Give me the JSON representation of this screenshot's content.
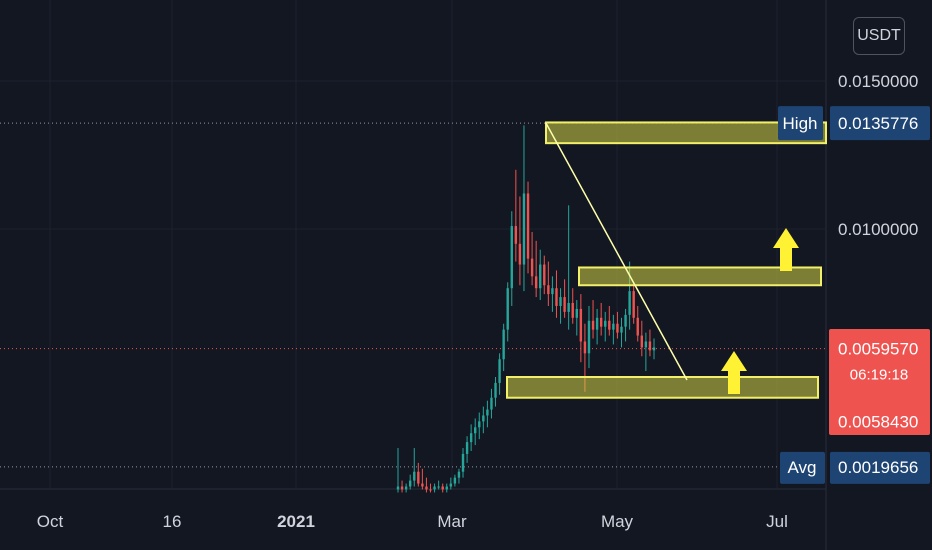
{
  "currency_button": "USDT",
  "chart_data": {
    "type": "candlestick",
    "y_axis": {
      "scale": "linear",
      "range": [
        0.001,
        0.0175
      ],
      "ticks": [
        "0.0150000",
        "0.0100000"
      ],
      "tick_values": [
        0.015,
        0.01
      ],
      "grid": true
    },
    "x_axis": {
      "tick_labels": [
        "Oct",
        "16",
        "2021",
        "Mar",
        "May",
        "Jul"
      ],
      "bold_labels": [
        "2021"
      ],
      "grid": true
    },
    "price_labels": {
      "high": {
        "label": "High",
        "value": "0.0135776",
        "numeric": 0.0135776
      },
      "current": {
        "value": "0.0059570",
        "numeric": 0.005957,
        "countdown": "06:19:18"
      },
      "low_level": {
        "value": "0.0058430",
        "numeric": 0.005843
      },
      "avg": {
        "label": "Avg",
        "value": "0.0019656",
        "numeric": 0.0019656
      }
    },
    "zones": [
      {
        "name": "top-zone",
        "low": 0.0129,
        "high": 0.0136
      },
      {
        "name": "middle-zone",
        "low": 0.0081,
        "high": 0.0087
      },
      {
        "name": "bottom-zone",
        "low": 0.0043,
        "high": 0.005
      }
    ],
    "trendline": {
      "from": 0.0135776,
      "to": 0.0049
    },
    "candles": [
      {
        "o": 0.0012,
        "h": 0.0026,
        "l": 0.0011,
        "c": 0.0013,
        "up": true
      },
      {
        "o": 0.0013,
        "h": 0.0015,
        "l": 0.0011,
        "c": 0.0012,
        "up": false
      },
      {
        "o": 0.0012,
        "h": 0.0014,
        "l": 0.0011,
        "c": 0.0013,
        "up": true
      },
      {
        "o": 0.0013,
        "h": 0.0017,
        "l": 0.0012,
        "c": 0.0015,
        "up": true
      },
      {
        "o": 0.0015,
        "h": 0.0026,
        "l": 0.0013,
        "c": 0.0018,
        "up": true
      },
      {
        "o": 0.0018,
        "h": 0.0021,
        "l": 0.0013,
        "c": 0.0014,
        "up": false
      },
      {
        "o": 0.0014,
        "h": 0.0019,
        "l": 0.0012,
        "c": 0.0013,
        "up": false
      },
      {
        "o": 0.0013,
        "h": 0.0016,
        "l": 0.0011,
        "c": 0.0012,
        "up": false
      },
      {
        "o": 0.0012,
        "h": 0.0014,
        "l": 0.0011,
        "c": 0.0012,
        "up": false
      },
      {
        "o": 0.0012,
        "h": 0.0014,
        "l": 0.0011,
        "c": 0.0013,
        "up": true
      },
      {
        "o": 0.0013,
        "h": 0.0015,
        "l": 0.0012,
        "c": 0.0013,
        "up": true
      },
      {
        "o": 0.0013,
        "h": 0.0014,
        "l": 0.0011,
        "c": 0.0012,
        "up": false
      },
      {
        "o": 0.0012,
        "h": 0.0014,
        "l": 0.0011,
        "c": 0.0013,
        "up": true
      },
      {
        "o": 0.0013,
        "h": 0.0016,
        "l": 0.0012,
        "c": 0.0014,
        "up": true
      },
      {
        "o": 0.0014,
        "h": 0.0017,
        "l": 0.0013,
        "c": 0.0016,
        "up": true
      },
      {
        "o": 0.0016,
        "h": 0.0019,
        "l": 0.0014,
        "c": 0.0018,
        "up": true
      },
      {
        "o": 0.0018,
        "h": 0.0026,
        "l": 0.0016,
        "c": 0.0024,
        "up": true
      },
      {
        "o": 0.0024,
        "h": 0.003,
        "l": 0.0021,
        "c": 0.0028,
        "up": true
      },
      {
        "o": 0.0028,
        "h": 0.0034,
        "l": 0.0025,
        "c": 0.0031,
        "up": true
      },
      {
        "o": 0.0031,
        "h": 0.0036,
        "l": 0.0027,
        "c": 0.0033,
        "up": true
      },
      {
        "o": 0.0033,
        "h": 0.0038,
        "l": 0.0029,
        "c": 0.0035,
        "up": true
      },
      {
        "o": 0.0035,
        "h": 0.004,
        "l": 0.0031,
        "c": 0.0037,
        "up": true
      },
      {
        "o": 0.0037,
        "h": 0.0042,
        "l": 0.0033,
        "c": 0.0039,
        "up": true
      },
      {
        "o": 0.0039,
        "h": 0.0046,
        "l": 0.0036,
        "c": 0.0043,
        "up": true
      },
      {
        "o": 0.0043,
        "h": 0.005,
        "l": 0.004,
        "c": 0.0048,
        "up": true
      },
      {
        "o": 0.0048,
        "h": 0.0058,
        "l": 0.0044,
        "c": 0.0056,
        "up": true
      },
      {
        "o": 0.0056,
        "h": 0.0068,
        "l": 0.0052,
        "c": 0.0066,
        "up": true
      },
      {
        "o": 0.0066,
        "h": 0.0082,
        "l": 0.0062,
        "c": 0.008,
        "up": true
      },
      {
        "o": 0.008,
        "h": 0.0106,
        "l": 0.0074,
        "c": 0.0101,
        "up": true
      },
      {
        "o": 0.0101,
        "h": 0.012,
        "l": 0.0089,
        "c": 0.0095,
        "up": false
      },
      {
        "o": 0.0095,
        "h": 0.0111,
        "l": 0.0081,
        "c": 0.0088,
        "up": false
      },
      {
        "o": 0.0088,
        "h": 0.0135,
        "l": 0.0079,
        "c": 0.0112,
        "up": true
      },
      {
        "o": 0.0112,
        "h": 0.0116,
        "l": 0.0085,
        "c": 0.009,
        "up": false
      },
      {
        "o": 0.009,
        "h": 0.0099,
        "l": 0.0081,
        "c": 0.0084,
        "up": false
      },
      {
        "o": 0.0084,
        "h": 0.0096,
        "l": 0.0077,
        "c": 0.008,
        "up": false
      },
      {
        "o": 0.008,
        "h": 0.0093,
        "l": 0.0076,
        "c": 0.0088,
        "up": true
      },
      {
        "o": 0.0088,
        "h": 0.0091,
        "l": 0.0078,
        "c": 0.0081,
        "up": false
      },
      {
        "o": 0.0081,
        "h": 0.0089,
        "l": 0.0074,
        "c": 0.0078,
        "up": false
      },
      {
        "o": 0.0078,
        "h": 0.0084,
        "l": 0.0072,
        "c": 0.008,
        "up": true
      },
      {
        "o": 0.008,
        "h": 0.0086,
        "l": 0.007,
        "c": 0.0074,
        "up": false
      },
      {
        "o": 0.0074,
        "h": 0.008,
        "l": 0.0068,
        "c": 0.0077,
        "up": true
      },
      {
        "o": 0.0077,
        "h": 0.0083,
        "l": 0.007,
        "c": 0.0072,
        "up": false
      },
      {
        "o": 0.0072,
        "h": 0.0108,
        "l": 0.0066,
        "c": 0.0075,
        "up": true
      },
      {
        "o": 0.0075,
        "h": 0.008,
        "l": 0.0068,
        "c": 0.007,
        "up": false
      },
      {
        "o": 0.007,
        "h": 0.0076,
        "l": 0.0064,
        "c": 0.0073,
        "up": true
      },
      {
        "o": 0.0073,
        "h": 0.0078,
        "l": 0.0055,
        "c": 0.0062,
        "up": false
      },
      {
        "o": 0.0062,
        "h": 0.0068,
        "l": 0.0045,
        "c": 0.0058,
        "up": false
      },
      {
        "o": 0.0058,
        "h": 0.0074,
        "l": 0.0053,
        "c": 0.0069,
        "up": true
      },
      {
        "o": 0.0069,
        "h": 0.0076,
        "l": 0.0063,
        "c": 0.0066,
        "up": false
      },
      {
        "o": 0.0066,
        "h": 0.0073,
        "l": 0.0061,
        "c": 0.007,
        "up": true
      },
      {
        "o": 0.007,
        "h": 0.0075,
        "l": 0.0064,
        "c": 0.0067,
        "up": false
      },
      {
        "o": 0.0067,
        "h": 0.0072,
        "l": 0.0062,
        "c": 0.0069,
        "up": true
      },
      {
        "o": 0.0069,
        "h": 0.0074,
        "l": 0.0064,
        "c": 0.0066,
        "up": false
      },
      {
        "o": 0.0066,
        "h": 0.0071,
        "l": 0.0061,
        "c": 0.0068,
        "up": true
      },
      {
        "o": 0.0068,
        "h": 0.0072,
        "l": 0.0063,
        "c": 0.0065,
        "up": false
      },
      {
        "o": 0.0065,
        "h": 0.007,
        "l": 0.006,
        "c": 0.0067,
        "up": true
      },
      {
        "o": 0.0067,
        "h": 0.0073,
        "l": 0.0062,
        "c": 0.0071,
        "up": true
      },
      {
        "o": 0.0071,
        "h": 0.0089,
        "l": 0.0066,
        "c": 0.0079,
        "up": true
      },
      {
        "o": 0.0079,
        "h": 0.0082,
        "l": 0.0068,
        "c": 0.007,
        "up": false
      },
      {
        "o": 0.007,
        "h": 0.0074,
        "l": 0.0062,
        "c": 0.0064,
        "up": false
      },
      {
        "o": 0.0064,
        "h": 0.0069,
        "l": 0.0057,
        "c": 0.006,
        "up": false
      },
      {
        "o": 0.006,
        "h": 0.0065,
        "l": 0.0052,
        "c": 0.0062,
        "up": true
      },
      {
        "o": 0.0062,
        "h": 0.0066,
        "l": 0.0057,
        "c": 0.0059,
        "up": false
      },
      {
        "o": 0.0059,
        "h": 0.0063,
        "l": 0.0056,
        "c": 0.006,
        "up": true
      }
    ]
  }
}
